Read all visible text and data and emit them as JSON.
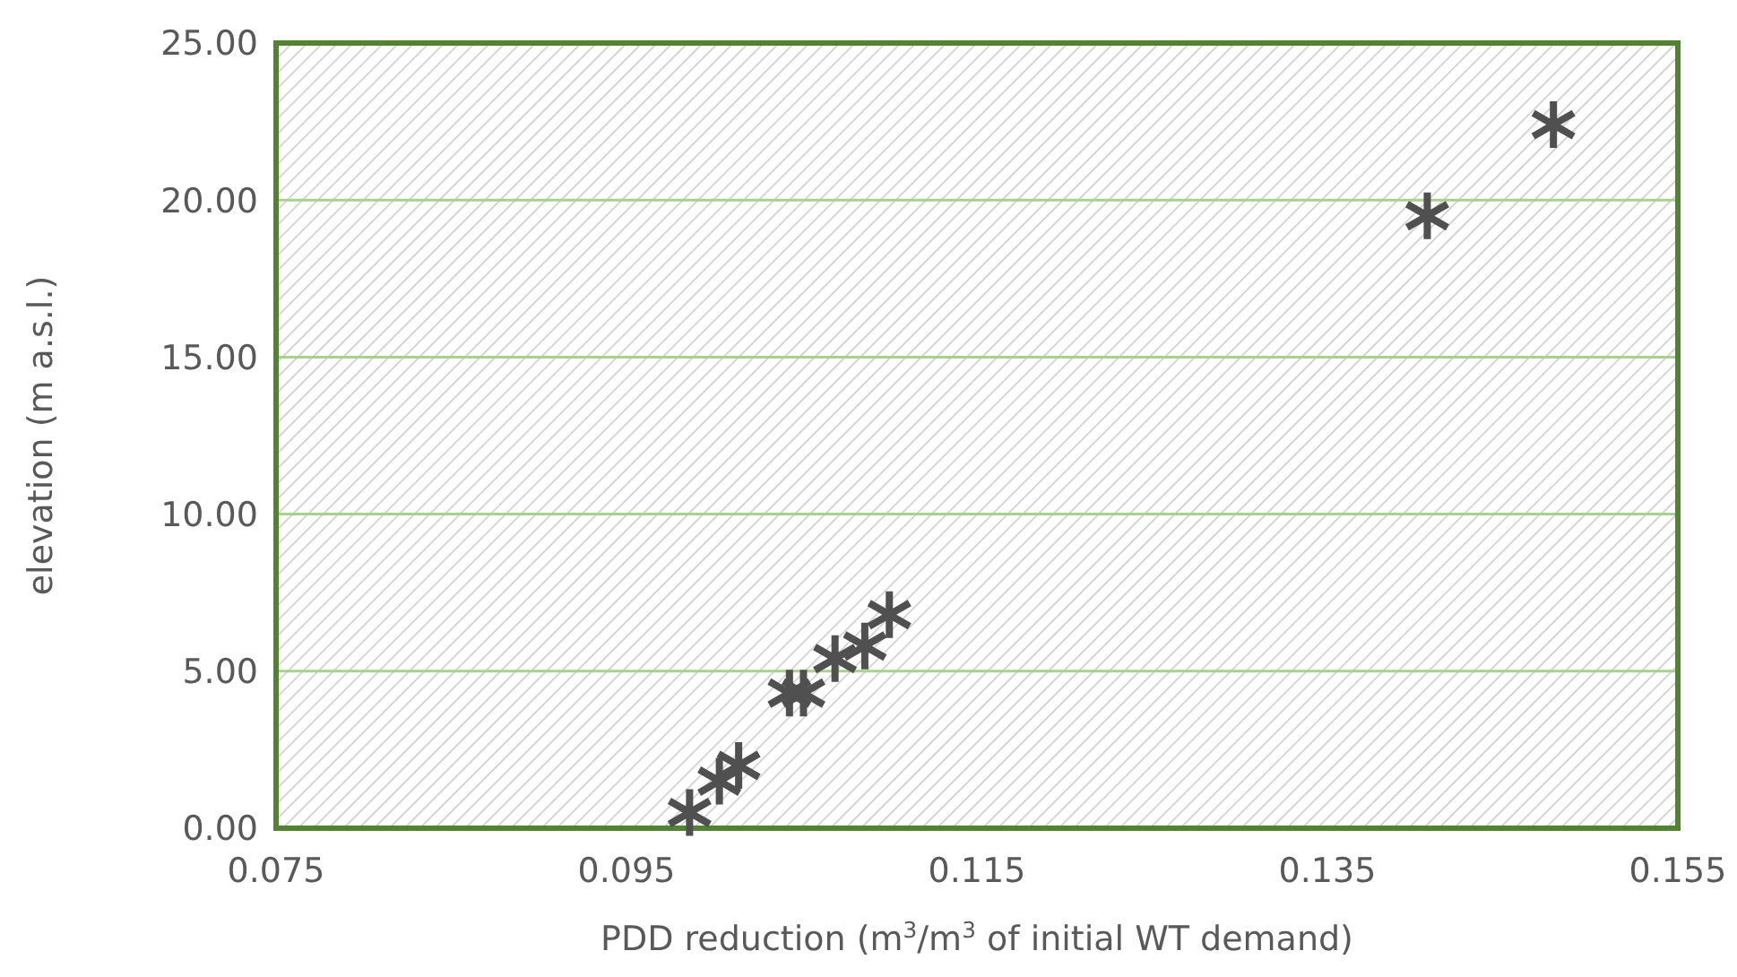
{
  "chart_data": {
    "type": "scatter",
    "xlabel": "PDD reduction (m$^{3}$/m$^{3}$ of initial WT demand)",
    "ylabel": "elevation (m a.s.l.)",
    "x": [
      0.0986,
      0.1003,
      0.1014,
      0.1043,
      0.1051,
      0.1069,
      0.1086,
      0.11,
      0.1407,
      0.1479
    ],
    "values": [
      0.5,
      1.5,
      2.0,
      4.3,
      4.3,
      5.4,
      5.8,
      6.8,
      19.5,
      22.4
    ],
    "color": "#505050",
    "marker": "star",
    "xlim": [
      0.075,
      0.155
    ],
    "xticks": [
      0.075,
      0.095,
      0.115,
      0.135,
      0.155
    ],
    "ylim": [
      0,
      25
    ],
    "yticks": [
      {
        "value": 0,
        "label": "0.00"
      },
      {
        "value": 5,
        "label": "5.00"
      },
      {
        "value": 10,
        "label": "10.00"
      },
      {
        "value": 15,
        "label": "15.00"
      },
      {
        "value": 20,
        "label": "20.00"
      },
      {
        "value": 25,
        "label": "25.00"
      }
    ],
    "grid": "y"
  }
}
